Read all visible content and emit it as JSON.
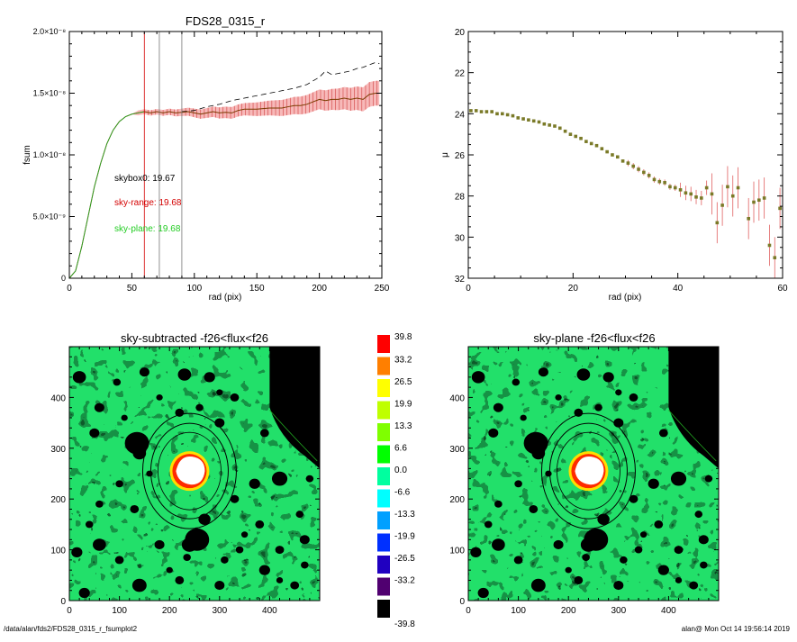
{
  "colors": {
    "sky_range": "#d40000",
    "sky_plane": "#22cc22",
    "profile_band": "#f08080",
    "marker_fill": "#7a7a28"
  },
  "footer": {
    "left": "/data/alan/fds2/FDS28_0315_r_fsumplot2",
    "right": "alan@   Mon Oct 14 19:56:14 2019"
  },
  "chart_data": [
    {
      "type": "line",
      "title": "FDS28_0315_r",
      "xlabel": "rad (pix)",
      "ylabel": "fsum",
      "xlim": [
        0,
        250
      ],
      "ylim": [
        0,
        2e-08
      ],
      "x_ticks": [
        "0",
        "50",
        "100",
        "150",
        "200",
        "250"
      ],
      "y_ticks": [
        "0",
        "5.0×10⁻⁹",
        "1.0×10⁻⁸",
        "1.5×10⁻⁸",
        "2.0×10⁻⁸"
      ],
      "annotations": [
        "skybox0: 19.67",
        "sky-range: 19.68",
        "sky-plane: 19.68"
      ],
      "vlines": [
        60,
        72,
        90
      ],
      "series": [
        {
          "values": [
            [
              0,
              0
            ],
            [
              5,
              6e-10
            ],
            [
              10,
              2.6e-09
            ],
            [
              15,
              5e-09
            ],
            [
              20,
              7.4e-09
            ],
            [
              25,
              9.3e-09
            ],
            [
              30,
              1.09e-08
            ],
            [
              35,
              1.2e-08
            ],
            [
              40,
              1.27e-08
            ],
            [
              45,
              1.31e-08
            ],
            [
              50,
              1.33e-08
            ],
            [
              55,
              1.34e-08
            ],
            [
              60,
              1.35e-08
            ],
            [
              65,
              1.34e-08
            ],
            [
              70,
              1.35e-08
            ],
            [
              75,
              1.34e-08
            ],
            [
              80,
              1.35e-08
            ],
            [
              85,
              1.34e-08
            ],
            [
              90,
              1.345e-08
            ],
            [
              95,
              1.35e-08
            ],
            [
              100,
              1.34e-08
            ],
            [
              105,
              1.33e-08
            ],
            [
              110,
              1.34e-08
            ],
            [
              115,
              1.35e-08
            ],
            [
              120,
              1.34e-08
            ],
            [
              125,
              1.345e-08
            ],
            [
              130,
              1.34e-08
            ],
            [
              135,
              1.36e-08
            ],
            [
              140,
              1.37e-08
            ],
            [
              145,
              1.37e-08
            ],
            [
              150,
              1.37e-08
            ],
            [
              155,
              1.375e-08
            ],
            [
              160,
              1.38e-08
            ],
            [
              165,
              1.38e-08
            ],
            [
              170,
              1.38e-08
            ],
            [
              175,
              1.39e-08
            ],
            [
              180,
              1.4e-08
            ],
            [
              185,
              1.4e-08
            ],
            [
              190,
              1.41e-08
            ],
            [
              195,
              1.43e-08
            ],
            [
              200,
              1.45e-08
            ],
            [
              205,
              1.44e-08
            ],
            [
              210,
              1.45e-08
            ],
            [
              215,
              1.45e-08
            ],
            [
              220,
              1.46e-08
            ],
            [
              225,
              1.45e-08
            ],
            [
              230,
              1.46e-08
            ],
            [
              235,
              1.45e-08
            ],
            [
              240,
              1.49e-08
            ],
            [
              245,
              1.5e-08
            ],
            [
              248,
              1.5e-08
            ]
          ],
          "errors": [
            [
              60,
              2e-10
            ],
            [
              80,
              2.5e-10
            ],
            [
              100,
              3.5e-10
            ],
            [
              120,
              4.5e-10
            ],
            [
              140,
              5e-10
            ],
            [
              160,
              6e-10
            ],
            [
              180,
              7e-10
            ],
            [
              200,
              8e-10
            ],
            [
              220,
              9e-10
            ],
            [
              240,
              1e-09
            ],
            [
              248,
              1e-09
            ]
          ]
        },
        {
          "values": [
            [
              90,
              1.35e-08
            ],
            [
              100,
              1.36e-08
            ],
            [
              110,
              1.39e-08
            ],
            [
              120,
              1.41e-08
            ],
            [
              130,
              1.44e-08
            ],
            [
              140,
              1.46e-08
            ],
            [
              150,
              1.48e-08
            ],
            [
              160,
              1.5e-08
            ],
            [
              170,
              1.52e-08
            ],
            [
              180,
              1.54e-08
            ],
            [
              190,
              1.57e-08
            ],
            [
              200,
              1.63e-08
            ],
            [
              205,
              1.68e-08
            ],
            [
              210,
              1.65e-08
            ],
            [
              215,
              1.66e-08
            ],
            [
              220,
              1.67e-08
            ],
            [
              225,
              1.68e-08
            ],
            [
              230,
              1.7e-08
            ],
            [
              235,
              1.71e-08
            ],
            [
              240,
              1.73e-08
            ],
            [
              245,
              1.75e-08
            ],
            [
              248,
              1.74e-08
            ]
          ]
        }
      ]
    },
    {
      "type": "scatter",
      "title": "",
      "xlabel": "rad (pix)",
      "ylabel": "μ",
      "xlim": [
        0,
        60
      ],
      "ylim": [
        32,
        20
      ],
      "x_ticks": [
        "0",
        "20",
        "40",
        "60"
      ],
      "y_ticks": [
        "20",
        "22",
        "24",
        "26",
        "28",
        "30",
        "32"
      ],
      "series": [
        {
          "values": [
            [
              0.5,
              23.85
            ],
            [
              1.5,
              23.85
            ],
            [
              2.5,
              23.9
            ],
            [
              3.5,
              23.9
            ],
            [
              4.5,
              23.9
            ],
            [
              5.5,
              24.0
            ],
            [
              6.5,
              24.0
            ],
            [
              7.5,
              24.05
            ],
            [
              8.5,
              24.1
            ],
            [
              9.5,
              24.2
            ],
            [
              10.5,
              24.25
            ],
            [
              11.5,
              24.3
            ],
            [
              12.5,
              24.35
            ],
            [
              13.5,
              24.4
            ],
            [
              14.5,
              24.5
            ],
            [
              15.5,
              24.55
            ],
            [
              16.5,
              24.6
            ],
            [
              17.5,
              24.7
            ],
            [
              18.5,
              24.85
            ],
            [
              19.5,
              25.0
            ],
            [
              20.5,
              25.1
            ],
            [
              21.5,
              25.2
            ],
            [
              22.5,
              25.35
            ],
            [
              23.5,
              25.45
            ],
            [
              24.5,
              25.55
            ],
            [
              25.5,
              25.7
            ],
            [
              26.5,
              25.85
            ],
            [
              27.5,
              26.0
            ],
            [
              28.5,
              26.1
            ],
            [
              29.5,
              26.3
            ],
            [
              30.5,
              26.4
            ],
            [
              31.5,
              26.55
            ],
            [
              32.5,
              26.7
            ],
            [
              33.5,
              26.85
            ],
            [
              34.5,
              27.0
            ],
            [
              35.5,
              27.2
            ],
            [
              36.5,
              27.3
            ],
            [
              37.5,
              27.35
            ],
            [
              38.5,
              27.55
            ],
            [
              39.5,
              27.6
            ],
            [
              40.5,
              27.7
            ],
            [
              41.5,
              27.85
            ],
            [
              42.5,
              27.9
            ],
            [
              43.5,
              28.05
            ],
            [
              44.5,
              28.1
            ],
            [
              45.5,
              27.6
            ],
            [
              46.5,
              27.9
            ],
            [
              47.5,
              29.3
            ],
            [
              48.5,
              28.45
            ],
            [
              49.5,
              27.55
            ],
            [
              50.5,
              28.0
            ],
            [
              51.5,
              27.6
            ],
            [
              53.5,
              29.1
            ],
            [
              54.5,
              28.3
            ],
            [
              55.5,
              28.2
            ],
            [
              56.5,
              28.1
            ],
            [
              57.5,
              30.4
            ],
            [
              58.5,
              31.0
            ],
            [
              59.5,
              28.6
            ]
          ]
        }
      ]
    },
    {
      "type": "heatmap",
      "title": "sky-subtracted -f26<flux<f26",
      "xlim": [
        0,
        500
      ],
      "ylim": [
        0,
        500
      ],
      "x_ticks": [
        "0",
        "100",
        "200",
        "300",
        "400"
      ],
      "y_ticks": [
        "0",
        "100",
        "200",
        "300",
        "400"
      ]
    },
    {
      "type": "heatmap",
      "title": "sky-plane -f26<flux<f26",
      "xlim": [
        0,
        500
      ],
      "ylim": [
        0,
        500
      ],
      "x_ticks": [
        "0",
        "100",
        "200",
        "300",
        "400"
      ],
      "y_ticks": [
        "0",
        "100",
        "200",
        "300",
        "400"
      ]
    }
  ],
  "colorbar": {
    "labels": [
      "39.8",
      "33.2",
      "26.5",
      "19.9",
      "13.3",
      "6.6",
      "0.0",
      "-6.6",
      "-13.3",
      "-19.9",
      "-26.5",
      "-33.2",
      "-39.8"
    ],
    "colors": [
      "#ff0000",
      "#ff7f00",
      "#ffff00",
      "#bfff00",
      "#7fff00",
      "#00ff00",
      "#00ff9f",
      "#00ffff",
      "#00a0ff",
      "#0030ff",
      "#2000c0",
      "#500070",
      "#000000"
    ]
  }
}
